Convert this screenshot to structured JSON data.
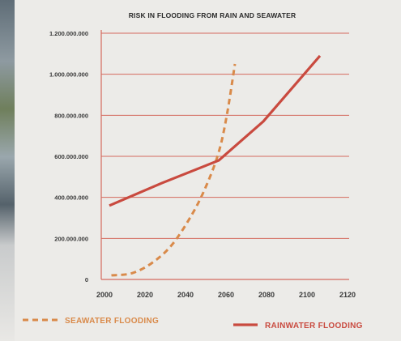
{
  "chart_data": {
    "type": "line",
    "title": "RISK IN FLOODING FROM RAIN AND SEAWATER",
    "xlabel": "",
    "ylabel": "",
    "xlim": [
      2000,
      2120
    ],
    "ylim": [
      0,
      1200000000
    ],
    "x_ticks": [
      "2000",
      "2020",
      "2040",
      "2060",
      "2080",
      "2100",
      "2120"
    ],
    "y_ticks": [
      "0",
      "200.000.000",
      "400.000.000",
      "600.000.000",
      "800.000.000",
      "1.000.000.000",
      "1.200.000.000"
    ],
    "y_tick_values": [
      0,
      200000000,
      400000000,
      600000000,
      800000000,
      1000000000,
      1200000000
    ],
    "x_tick_values": [
      2000,
      2020,
      2040,
      2060,
      2080,
      2100,
      2120
    ],
    "grid": "horizontal",
    "legend_position": "bottom",
    "series": [
      {
        "name": "SEAWATER FLOODING",
        "style": "dashed",
        "color": "#d98a4a",
        "x": [
          2005,
          2015,
          2025,
          2035,
          2045,
          2052,
          2058,
          2062,
          2066
        ],
        "y": [
          20000000,
          30000000,
          80000000,
          170000000,
          320000000,
          460000000,
          620000000,
          800000000,
          1050000000
        ]
      },
      {
        "name": "RAINWATER FLOODING",
        "style": "solid",
        "color": "#c94a3f",
        "x": [
          2004,
          2030,
          2058,
          2080,
          2108
        ],
        "y": [
          360000000,
          470000000,
          580000000,
          770000000,
          1090000000
        ]
      }
    ]
  }
}
